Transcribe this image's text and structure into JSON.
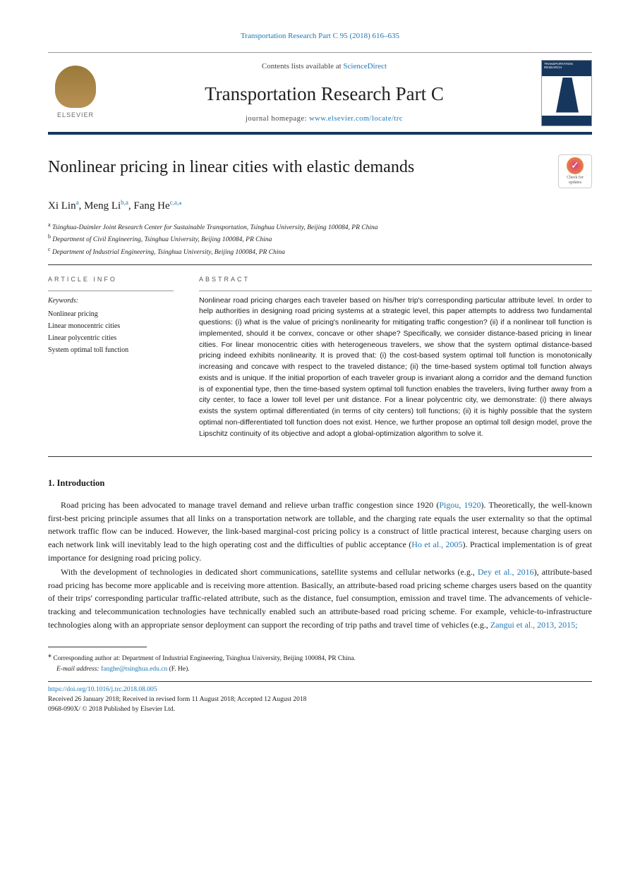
{
  "top": {
    "journal_ref": "Transportation Research Part C 95 (2018) 616–635"
  },
  "header": {
    "contents_prefix": "Contents lists available at ",
    "contents_link": "ScienceDirect",
    "journal_name": "Transportation Research Part C",
    "homepage_prefix": "journal homepage: ",
    "homepage_url": "www.elsevier.com/locate/trc",
    "publisher": "ELSEVIER",
    "cover_label": "TRANSPORTATION RESEARCH"
  },
  "updates_badge": {
    "line1": "Check for",
    "line2": "updates"
  },
  "article": {
    "title": "Nonlinear pricing in linear cities with elastic demands",
    "authors_html": "Xi Lin<sup>a</sup>, Meng Li<sup>b,a</sup>, Fang He<sup>c,a,*</sup>",
    "author1": "Xi Lin",
    "author1_sup": "a",
    "author2": "Meng Li",
    "author2_sup": "b,a",
    "author3": "Fang He",
    "author3_sup": "c,a,",
    "author3_star": "⁎",
    "affiliations": [
      {
        "sup": "a",
        "text": "Tsinghua-Daimler Joint Research Center for Sustainable Transportation, Tsinghua University, Beijing 100084, PR China"
      },
      {
        "sup": "b",
        "text": "Department of Civil Engineering, Tsinghua University, Beijing 100084, PR China"
      },
      {
        "sup": "c",
        "text": "Department of Industrial Engineering, Tsinghua University, Beijing 100084, PR China"
      }
    ]
  },
  "info": {
    "label": "ARTICLE INFO",
    "keywords_heading": "Keywords:",
    "keywords": [
      "Nonlinear pricing",
      "Linear monocentric cities",
      "Linear polycentric cities",
      "System optimal toll function"
    ]
  },
  "abstract": {
    "label": "ABSTRACT",
    "text": "Nonlinear road pricing charges each traveler based on his/her trip's corresponding particular attribute level. In order to help authorities in designing road pricing systems at a strategic level, this paper attempts to address two fundamental questions: (i) what is the value of pricing's nonlinearity for mitigating traffic congestion? (ii) if a nonlinear toll function is implemented, should it be convex, concave or other shape? Specifically, we consider distance-based pricing in linear cities. For linear monocentric cities with heterogeneous travelers, we show that the system optimal distance-based pricing indeed exhibits nonlinearity. It is proved that: (i) the cost-based system optimal toll function is monotonically increasing and concave with respect to the traveled distance; (ii) the time-based system optimal toll function always exists and is unique. If the initial proportion of each traveler group is invariant along a corridor and the demand function is of exponential type, then the time-based system optimal toll function enables the travelers, living further away from a city center, to face a lower toll level per unit distance. For a linear polycentric city, we demonstrate: (i) there always exists the system optimal differentiated (in terms of city centers) toll functions; (ii) it is highly possible that the system optimal non-differentiated toll function does not exist. Hence, we further propose an optimal toll design model, prove the Lipschitz continuity of its objective and adopt a global-optimization algorithm to solve it."
  },
  "sections": {
    "intro_heading": "1. Introduction",
    "para1_a": "Road pricing has been advocated to manage travel demand and relieve urban traffic congestion since 1920 (",
    "para1_cite1": "Pigou, 1920",
    "para1_b": "). Theoretically, the well-known first-best pricing principle assumes that all links on a transportation network are tollable, and the charging rate equals the user externality so that the optimal network traffic flow can be induced. However, the link-based marginal-cost pricing policy is a construct of little practical interest, because charging users on each network link will inevitably lead to the high operating cost and the difficulties of public acceptance (",
    "para1_cite2": "Ho et al., 2005",
    "para1_c": "). Practical implementation is of great importance for designing road pricing policy.",
    "para2_a": "With the development of technologies in dedicated short communications, satellite systems and cellular networks (e.g., ",
    "para2_cite1": "Dey et al., 2016",
    "para2_b": "), attribute-based road pricing has become more applicable and is receiving more attention. Basically, an attribute-based road pricing scheme charges users based on the quantity of their trips' corresponding particular traffic-related attribute, such as the distance, fuel consumption, emission and travel time. The advancements of vehicle-tracking and telecommunication technologies have technically enabled such an attribute-based road pricing scheme. For example, vehicle-to-infrastructure technologies along with an appropriate sensor deployment can support the recording of trip paths and travel time of vehicles (e.g., ",
    "para2_cite2": "Zangui et al., 2013, 2015;"
  },
  "footnote": {
    "star": "⁎",
    "corresponding": "Corresponding author at: Department of Industrial Engineering, Tsinghua University, Beijing 100084, PR China.",
    "email_label": "E-mail address: ",
    "email": "fanghe@tsinghua.edu.cn",
    "email_who": " (F. He)."
  },
  "pub": {
    "doi": "https://doi.org/10.1016/j.trc.2018.08.005",
    "dates": "Received 26 January 2018; Received in revised form 11 August 2018; Accepted 12 August 2018",
    "copyright": "0968-090X/ © 2018 Published by Elsevier Ltd."
  }
}
